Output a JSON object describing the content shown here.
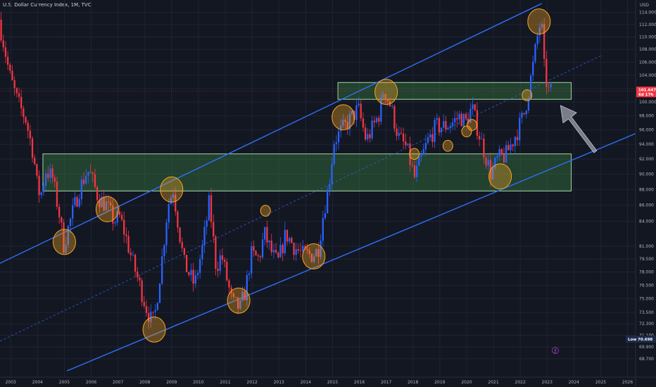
{
  "header": {
    "title": "U.S. Dollar Currency Index, 1M, TVC"
  },
  "currency": "USD",
  "colors": {
    "up": "#2962ff",
    "down": "#f23645",
    "background": "#131722",
    "channel": "#2f6ff5",
    "zone": "#4caf50",
    "circle": "#f5a623",
    "arrow": "#9aa1ae",
    "price_tag": "#f23645",
    "low_tag": "#1e2a4a"
  },
  "price_tag": {
    "value": "101.647",
    "countdown": "6d 17h"
  },
  "low_tag": {
    "label": "Low",
    "value": "70.698"
  },
  "bottom_icon": "tradingview-logo-icon",
  "chart_data": {
    "type": "candlestick",
    "y_scale": "log",
    "ylim": [
      67.5,
      115.5
    ],
    "xlim": [
      2002.6,
      2026.3
    ],
    "y_ticks": [
      "114.000",
      "112.000",
      "110.000",
      "108.000",
      "106.000",
      "104.000",
      "102.000",
      "100.000",
      "98.000",
      "96.000",
      "94.000",
      "92.000",
      "90.000",
      "88.000",
      "86.000",
      "84.000",
      "81.000",
      "79.500",
      "78.000",
      "76.500",
      "75.000",
      "73.500",
      "72.300",
      "71.100",
      "69.900",
      "68.700"
    ],
    "x_ticks": [
      "2003",
      "2004",
      "2005",
      "2006",
      "2007",
      "2008",
      "2009",
      "2010",
      "2011",
      "2012",
      "2013",
      "2014",
      "2015",
      "2016",
      "2017",
      "2018",
      "2019",
      "2020",
      "2021",
      "2022",
      "2023",
      "2024",
      "2025",
      "2026"
    ],
    "close_path": [
      [
        2002.6,
        112.8
      ],
      [
        2002.8,
        108.5
      ],
      [
        2003.0,
        104.0
      ],
      [
        2003.3,
        100.0
      ],
      [
        2003.6,
        97.5
      ],
      [
        2003.9,
        92.5
      ],
      [
        2004.0,
        89.0
      ],
      [
        2004.15,
        87.0
      ],
      [
        2004.35,
        90.5
      ],
      [
        2004.6,
        89.5
      ],
      [
        2004.9,
        84.0
      ],
      [
        2005.0,
        81.0
      ],
      [
        2005.3,
        84.5
      ],
      [
        2005.6,
        88.0
      ],
      [
        2005.9,
        90.5
      ],
      [
        2006.0,
        90.0
      ],
      [
        2006.3,
        87.0
      ],
      [
        2006.6,
        86.0
      ],
      [
        2006.9,
        84.0
      ],
      [
        2007.1,
        84.5
      ],
      [
        2007.3,
        82.5
      ],
      [
        2007.6,
        79.0
      ],
      [
        2007.9,
        76.0
      ],
      [
        2008.1,
        74.0
      ],
      [
        2008.3,
        72.5
      ],
      [
        2008.4,
        72.8
      ],
      [
        2008.7,
        80.0
      ],
      [
        2008.9,
        86.0
      ],
      [
        2009.1,
        88.0
      ],
      [
        2009.25,
        84.5
      ],
      [
        2009.5,
        79.0
      ],
      [
        2009.9,
        76.5
      ],
      [
        2010.2,
        81.0
      ],
      [
        2010.45,
        86.5
      ],
      [
        2010.7,
        78.5
      ],
      [
        2010.9,
        80.0
      ],
      [
        2011.3,
        74.5
      ],
      [
        2011.6,
        74.0
      ],
      [
        2011.8,
        76.0
      ],
      [
        2012.0,
        80.0
      ],
      [
        2012.3,
        79.5
      ],
      [
        2012.5,
        82.5
      ],
      [
        2012.8,
        80.0
      ],
      [
        2013.0,
        79.0
      ],
      [
        2013.3,
        82.5
      ],
      [
        2013.6,
        81.0
      ],
      [
        2013.9,
        80.0
      ],
      [
        2014.3,
        80.0
      ],
      [
        2014.5,
        80.5
      ],
      [
        2014.7,
        85.0
      ],
      [
        2014.9,
        88.5
      ],
      [
        2015.1,
        94.5
      ],
      [
        2015.3,
        95.5
      ],
      [
        2015.6,
        97.0
      ],
      [
        2015.9,
        98.5
      ],
      [
        2016.0,
        99.0
      ],
      [
        2016.3,
        94.5
      ],
      [
        2016.5,
        96.0
      ],
      [
        2016.8,
        98.5
      ],
      [
        2016.95,
        102.0
      ],
      [
        2017.2,
        99.5
      ],
      [
        2017.5,
        95.0
      ],
      [
        2017.8,
        93.5
      ],
      [
        2018.1,
        89.5
      ],
      [
        2018.3,
        91.5
      ],
      [
        2018.6,
        94.5
      ],
      [
        2018.9,
        96.5
      ],
      [
        2019.2,
        96.5
      ],
      [
        2019.5,
        97.0
      ],
      [
        2019.8,
        98.0
      ],
      [
        2020.0,
        97.0
      ],
      [
        2020.15,
        98.5
      ],
      [
        2020.25,
        99.0
      ],
      [
        2020.5,
        95.5
      ],
      [
        2020.7,
        93.0
      ],
      [
        2020.95,
        90.0
      ],
      [
        2021.2,
        92.0
      ],
      [
        2021.5,
        92.5
      ],
      [
        2021.7,
        94.0
      ],
      [
        2021.95,
        96.0
      ],
      [
        2022.2,
        98.5
      ],
      [
        2022.5,
        105.0
      ],
      [
        2022.75,
        112.0
      ],
      [
        2022.85,
        111.0
      ],
      [
        2022.95,
        104.0
      ],
      [
        2023.05,
        102.5
      ],
      [
        2023.1,
        101.6
      ]
    ],
    "channel_lines": [
      {
        "name": "upper",
        "points": [
          [
            2002.6,
            79.0
          ],
          [
            2022.8,
            115.5
          ]
        ]
      },
      {
        "name": "middle",
        "style": "dashed",
        "points": [
          [
            2002.6,
            70.5
          ],
          [
            2025.0,
            107.0
          ]
        ]
      },
      {
        "name": "lower",
        "points": [
          [
            2005.1,
            67.5
          ],
          [
            2026.3,
            95.5
          ]
        ]
      }
    ],
    "zones": [
      {
        "name": "resistance",
        "x": [
          2015.2,
          2023.9
        ],
        "y": [
          100.4,
          102.9
        ]
      },
      {
        "name": "support",
        "x": [
          2004.2,
          2023.9
        ],
        "y": [
          87.8,
          92.7
        ]
      }
    ],
    "circles": [
      {
        "x": 2005.0,
        "y": 81.5,
        "size": "large"
      },
      {
        "x": 2006.6,
        "y": 85.5,
        "size": "large"
      },
      {
        "x": 2009.0,
        "y": 88.0,
        "size": "large"
      },
      {
        "x": 2008.35,
        "y": 71.7,
        "size": "large"
      },
      {
        "x": 2011.5,
        "y": 74.8,
        "size": "large"
      },
      {
        "x": 2012.5,
        "y": 85.3,
        "size": "small"
      },
      {
        "x": 2014.3,
        "y": 79.8,
        "size": "large"
      },
      {
        "x": 2015.4,
        "y": 97.8,
        "size": "large"
      },
      {
        "x": 2017.0,
        "y": 101.5,
        "size": "large"
      },
      {
        "x": 2018.05,
        "y": 92.7,
        "size": "small"
      },
      {
        "x": 2019.3,
        "y": 93.8,
        "size": "small"
      },
      {
        "x": 2020.0,
        "y": 95.8,
        "size": "small"
      },
      {
        "x": 2020.2,
        "y": 96.7,
        "size": "small"
      },
      {
        "x": 2021.25,
        "y": 89.7,
        "size": "large"
      },
      {
        "x": 2022.25,
        "y": 101.0,
        "size": "small"
      },
      {
        "x": 2022.7,
        "y": 112.5,
        "size": "large"
      }
    ],
    "arrow": {
      "from": [
        2024.8,
        93.0
      ],
      "to": [
        2023.5,
        99.5
      ]
    }
  }
}
